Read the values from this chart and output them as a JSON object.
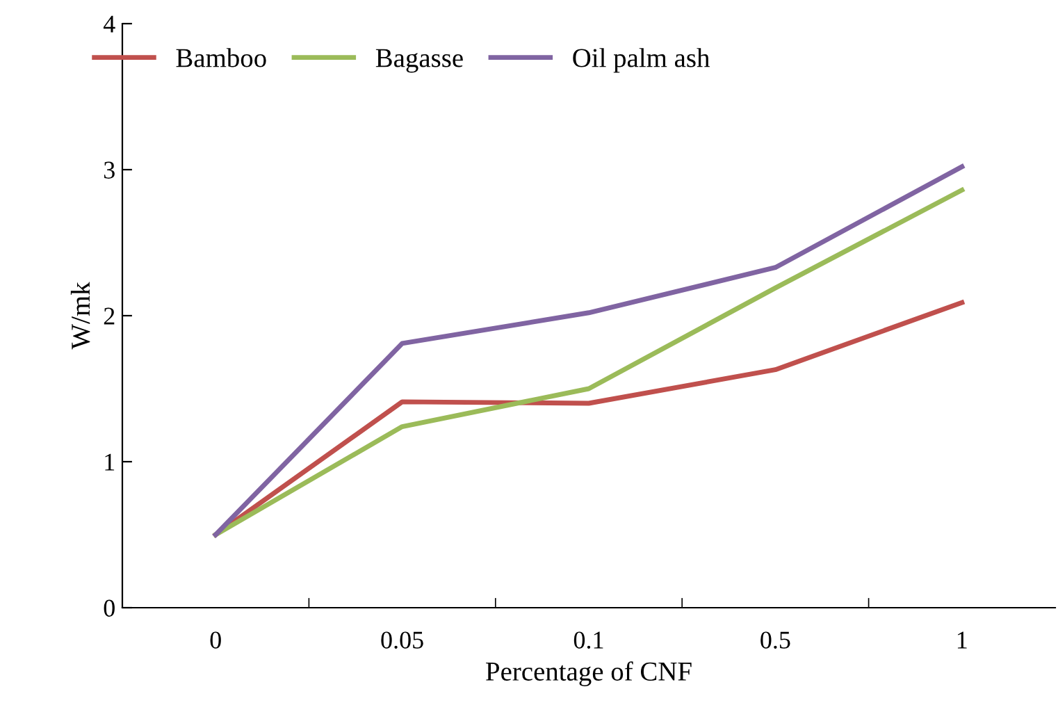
{
  "chart_data": {
    "type": "line",
    "xlabel": "Percentage of CNF",
    "ylabel": "W/mk",
    "categories": [
      "0",
      "0.05",
      "0.1",
      "0.5",
      "1"
    ],
    "series": [
      {
        "name": "Bamboo",
        "color": "#c0504d",
        "values": [
          0.5,
          1.41,
          1.4,
          1.63,
          2.09
        ]
      },
      {
        "name": "Bagasse",
        "color": "#9bbb59",
        "values": [
          0.5,
          1.24,
          1.5,
          2.19,
          2.86
        ]
      },
      {
        "name": "Oil palm ash",
        "color": "#8064a2",
        "values": [
          0.5,
          1.81,
          2.02,
          2.33,
          3.02
        ]
      }
    ],
    "ylim": [
      0,
      4
    ],
    "yticks": [
      0,
      1,
      2,
      3,
      4
    ],
    "grid": false,
    "legend": "top",
    "marker": "none",
    "line_style": "solid"
  }
}
